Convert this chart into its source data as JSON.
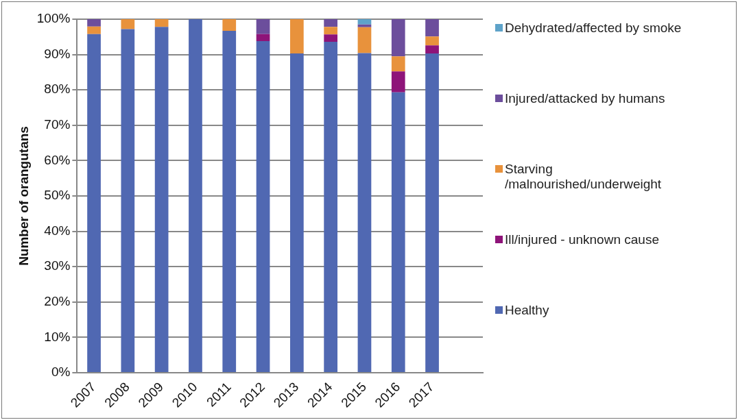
{
  "chart_data": {
    "type": "bar",
    "stacked": true,
    "ylabel": "Number of orangutans",
    "categories": [
      "2007",
      "2008",
      "2009",
      "2010",
      "2011",
      "2012",
      "2013",
      "2014",
      "2015",
      "2016",
      "2017",
      null
    ],
    "series": [
      {
        "name": "Healthy",
        "color": "#5068b2",
        "values": [
          95.8,
          97.2,
          97.8,
          100,
          96.7,
          93.8,
          90.3,
          93.6,
          90.4,
          79.3,
          90.3,
          null
        ]
      },
      {
        "name": "Ill/injured - unknown cause",
        "color": "#8e1479",
        "values": [
          0,
          0,
          0,
          0,
          0,
          2,
          0,
          2.1,
          0,
          5.9,
          2.3,
          null
        ]
      },
      {
        "name": "Starving /malnourished/underweight",
        "color": "#e8923c",
        "values": [
          2.1,
          2.8,
          2.2,
          0,
          3.3,
          0,
          9.7,
          2.1,
          7.3,
          4.3,
          2.5,
          null
        ]
      },
      {
        "name": "Injured/attacked by humans",
        "color": "#6c4e9c",
        "values": [
          2.1,
          0,
          0,
          0,
          0,
          4.2,
          0,
          2.2,
          0.8,
          10.5,
          4.9,
          null
        ]
      },
      {
        "name": "Dehydrated/affected by smoke",
        "color": "#5ea3c9",
        "values": [
          0,
          0,
          0,
          0,
          0,
          0,
          0,
          0,
          1.5,
          0,
          0,
          null
        ]
      }
    ],
    "ylim": [
      0,
      100
    ],
    "yticks": [
      {
        "value": 0,
        "label": "0%"
      },
      {
        "value": 10,
        "label": "10%"
      },
      {
        "value": 20,
        "label": "20%"
      },
      {
        "value": 30,
        "label": "30%"
      },
      {
        "value": 40,
        "label": "40%"
      },
      {
        "value": 50,
        "label": "50%"
      },
      {
        "value": 60,
        "label": "60%"
      },
      {
        "value": 70,
        "label": "70%"
      },
      {
        "value": 80,
        "label": "80%"
      },
      {
        "value": 90,
        "label": "90%"
      },
      {
        "value": 100,
        "label": "100%"
      }
    ],
    "grid": "y",
    "legend": "right"
  }
}
